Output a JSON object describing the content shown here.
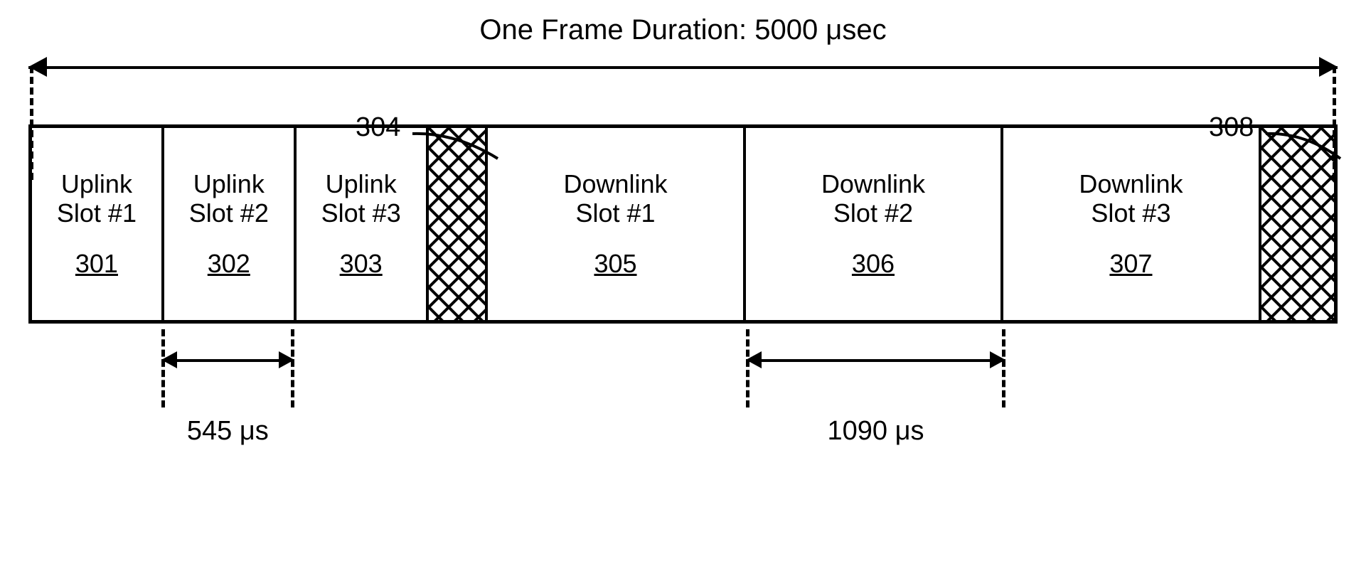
{
  "diagram": {
    "type": "timing-frame",
    "background_color": "#ffffff",
    "stroke_color": "#000000",
    "stroke_width": 4,
    "font_family": "Segoe UI, Arial, sans-serif",
    "title_fontsize": 40,
    "slot_fontsize": 36,
    "measure_fontsize": 38,
    "frame_label": "One Frame Duration:  5000 μsec",
    "callouts": [
      {
        "ref": "304",
        "target": "guard-1"
      },
      {
        "ref": "308",
        "target": "guard-2"
      }
    ],
    "slots": [
      {
        "kind": "uplink",
        "label_line1": "Uplink",
        "label_line2": "Slot #1",
        "ref": "301",
        "width_fr": 1.0
      },
      {
        "kind": "uplink",
        "label_line1": "Uplink",
        "label_line2": "Slot #2",
        "ref": "302",
        "width_fr": 1.0
      },
      {
        "kind": "uplink",
        "label_line1": "Uplink",
        "label_line2": "Slot #3",
        "ref": "303",
        "width_fr": 1.0
      },
      {
        "kind": "guard",
        "ref": null,
        "width_fr": 0.45
      },
      {
        "kind": "downlink",
        "label_line1": "Downlink",
        "label_line2": "Slot #1",
        "ref": "305",
        "width_fr": 1.95
      },
      {
        "kind": "downlink",
        "label_line1": "Downlink",
        "label_line2": "Slot #2",
        "ref": "306",
        "width_fr": 1.95
      },
      {
        "kind": "downlink",
        "label_line1": "Downlink",
        "label_line2": "Slot #3",
        "ref": "307",
        "width_fr": 1.95
      },
      {
        "kind": "guard",
        "ref": null,
        "width_fr": 0.55
      }
    ],
    "measurements": {
      "uplink_slot": {
        "label": "545 μs",
        "duration_us": 545,
        "span_slot_index": 1
      },
      "downlink_slot": {
        "label": "1090 μs",
        "duration_us": 1090,
        "span_slot_index": 5
      }
    },
    "hatch_pattern": {
      "size": 28,
      "stroke": "#000000",
      "stroke_width": 4,
      "angles_deg": [
        45,
        -45
      ]
    }
  }
}
